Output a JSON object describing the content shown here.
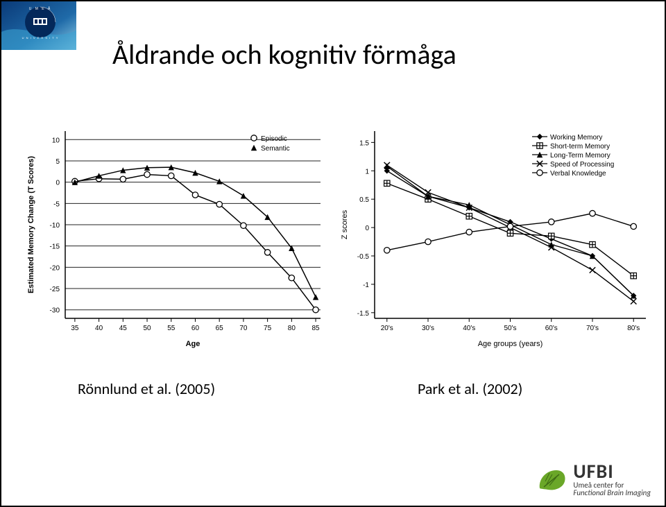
{
  "title": "Åldrande och kognitiv förmåga",
  "caption_a": "Rönnlund et al. (2005)",
  "caption_b": "Park et al. (2002)",
  "footer": {
    "acronym": "UFBI",
    "line1": "Umeå center for",
    "line2": "Functional Brain Imaging"
  },
  "chart_a": {
    "type": "line",
    "xlabel": "Age",
    "ylabel": "Estimated Memory Change (T Scores)",
    "xticks": [
      35,
      40,
      45,
      50,
      55,
      60,
      65,
      70,
      75,
      80,
      85
    ],
    "yticks": [
      10,
      5,
      0,
      -5,
      -10,
      -15,
      -20,
      -25,
      -30
    ],
    "xlim": [
      33,
      86
    ],
    "ylim": [
      -32,
      12
    ],
    "grid_color": "#222",
    "axis_color": "#000",
    "background_color": "#ffffff",
    "label_fontsize": 11,
    "tick_fontsize": 10,
    "legend_fontsize": 10,
    "series": [
      {
        "name": "Episodic",
        "marker": "circle-open",
        "color": "#000000",
        "line_width": 1.5,
        "x": [
          35,
          40,
          45,
          50,
          55,
          60,
          65,
          70,
          75,
          80,
          85
        ],
        "y": [
          0.2,
          0.8,
          0.7,
          1.8,
          1.5,
          -3.0,
          -5.2,
          -10.2,
          -16.5,
          -22.5,
          -30.0
        ]
      },
      {
        "name": "Semantic",
        "marker": "triangle-filled",
        "color": "#000000",
        "line_width": 1.5,
        "x": [
          35,
          40,
          45,
          50,
          55,
          60,
          65,
          70,
          75,
          80,
          85
        ],
        "y": [
          0.0,
          1.5,
          2.8,
          3.4,
          3.5,
          2.2,
          0.2,
          -3.2,
          -8.2,
          -15.5,
          -27.0
        ]
      }
    ]
  },
  "chart_b": {
    "type": "line",
    "xlabel": "Age groups (years)",
    "ylabel": "Z scores",
    "xticks_labels": [
      "20's",
      "30's",
      "40's",
      "50's",
      "60's",
      "70's",
      "80's"
    ],
    "xticks_pos": [
      0,
      1,
      2,
      3,
      4,
      5,
      6
    ],
    "yticks": [
      -1.5,
      -1,
      -0.5,
      0,
      0.5,
      1,
      1.5
    ],
    "xlim": [
      -0.3,
      6.3
    ],
    "ylim": [
      -1.6,
      1.7
    ],
    "axis_color": "#000",
    "background_color": "#ffffff",
    "label_fontsize": 11,
    "tick_fontsize": 10,
    "legend_fontsize": 10,
    "series": [
      {
        "name": "Working Memory",
        "marker": "diamond-filled",
        "color": "#000",
        "x": [
          0,
          1,
          2,
          3,
          4,
          5,
          6
        ],
        "y": [
          1.0,
          0.55,
          0.35,
          0.1,
          -0.2,
          -0.5,
          -1.2
        ]
      },
      {
        "name": "Short-term Memory",
        "marker": "square-split",
        "color": "#000",
        "x": [
          0,
          1,
          2,
          3,
          4,
          5,
          6
        ],
        "y": [
          0.78,
          0.5,
          0.2,
          -0.1,
          -0.15,
          -0.3,
          -0.85
        ]
      },
      {
        "name": "Long-Term Memory",
        "marker": "triangle-filled",
        "color": "#000",
        "x": [
          0,
          1,
          2,
          3,
          4,
          5,
          6
        ],
        "y": [
          1.08,
          0.55,
          0.4,
          0.05,
          -0.3,
          -0.5,
          -1.2
        ]
      },
      {
        "name": "Speed of Processing",
        "marker": "x",
        "color": "#000",
        "x": [
          0,
          1,
          2,
          3,
          4,
          5,
          6
        ],
        "y": [
          1.1,
          0.62,
          0.35,
          0.0,
          -0.35,
          -0.75,
          -1.3
        ]
      },
      {
        "name": "Verbal Knowledge",
        "marker": "circle-open",
        "color": "#000",
        "x": [
          0,
          1,
          2,
          3,
          4,
          5,
          6
        ],
        "y": [
          -0.4,
          -0.25,
          -0.08,
          0.02,
          0.1,
          0.25,
          0.02
        ]
      }
    ]
  }
}
